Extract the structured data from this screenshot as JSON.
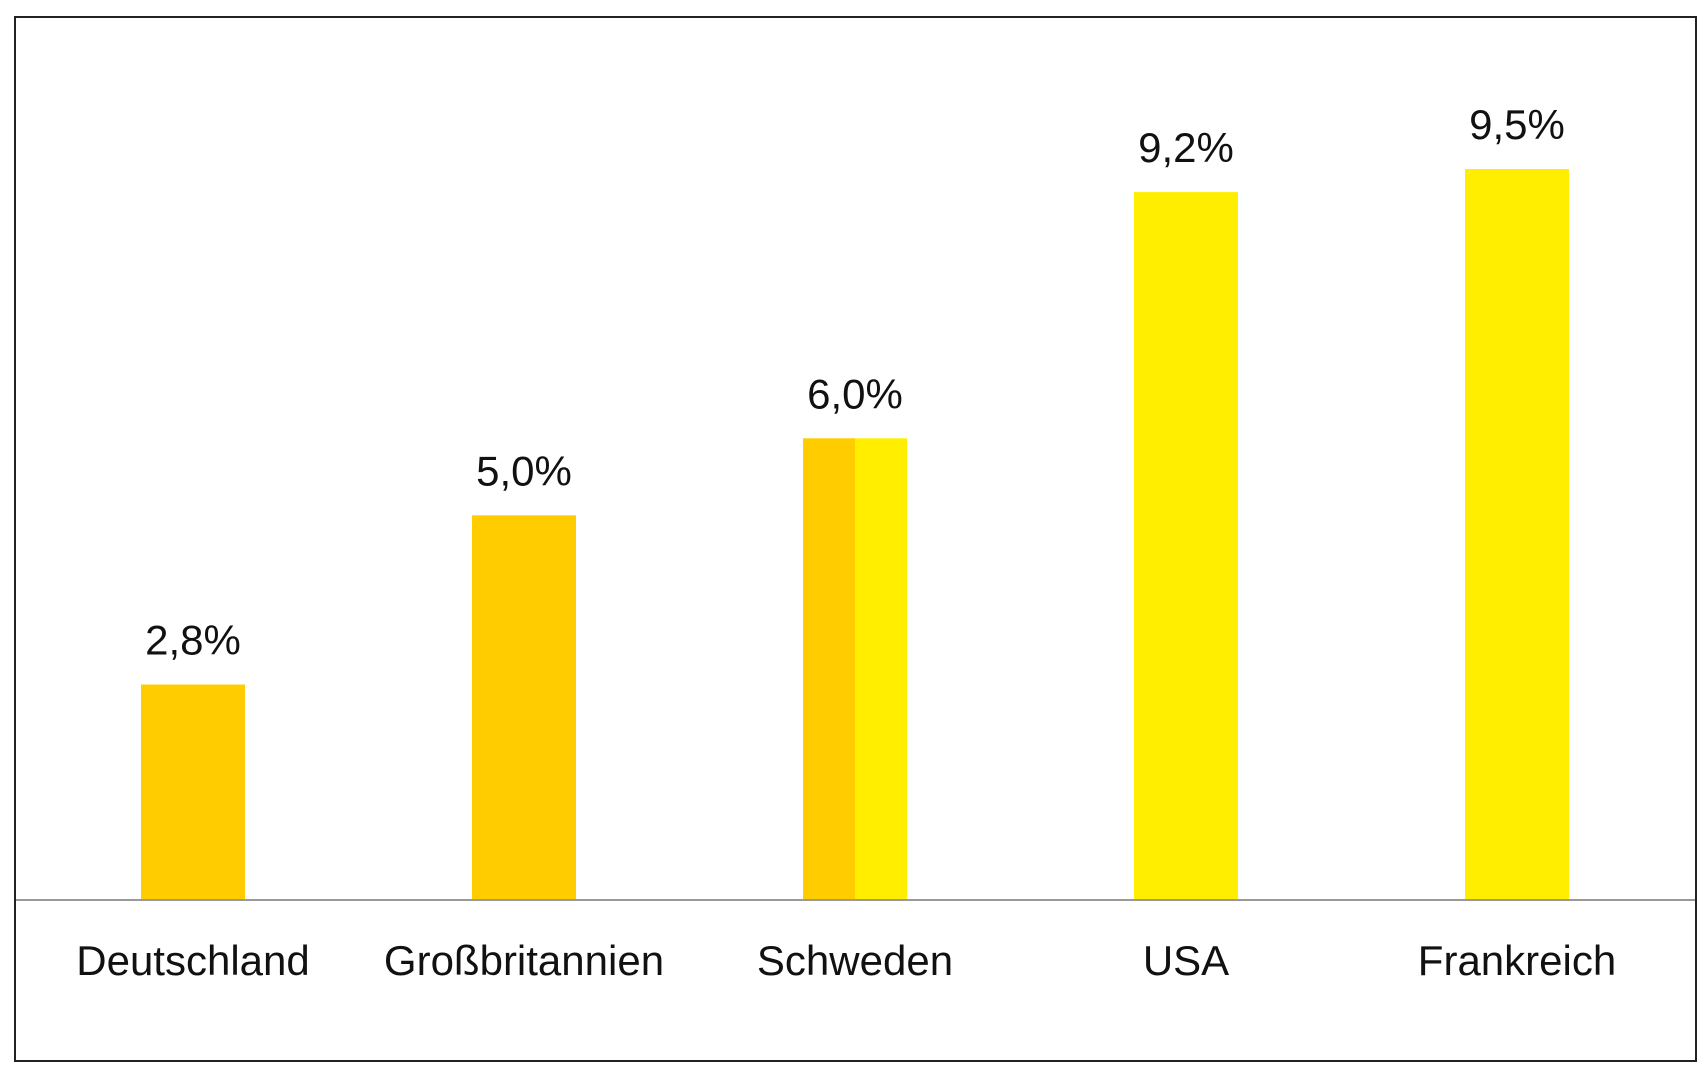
{
  "colors": {
    "amber": "#FFCC00",
    "yellow": "#FFEE00",
    "axis": "#999999",
    "text": "#111111",
    "frame": "#222222"
  },
  "chart_data": {
    "type": "bar",
    "title": "",
    "xlabel": "",
    "ylabel": "",
    "ylim": [
      0,
      10
    ],
    "grid": false,
    "legend": "none",
    "categories": [
      "Deutschland",
      "Großbritannien",
      "Schweden",
      "USA",
      "Frankreich"
    ],
    "values": [
      2.8,
      5.0,
      6.0,
      9.2,
      9.5
    ],
    "value_labels": [
      "2,8%",
      "5,0%",
      "6,0%",
      "9,2%",
      "9,5%"
    ],
    "bar_colors": [
      [
        "#FFCC00"
      ],
      [
        "#FFCC00"
      ],
      [
        "#FFCC00",
        "#FFEE00"
      ],
      [
        "#FFEE00"
      ],
      [
        "#FFEE00"
      ]
    ]
  }
}
